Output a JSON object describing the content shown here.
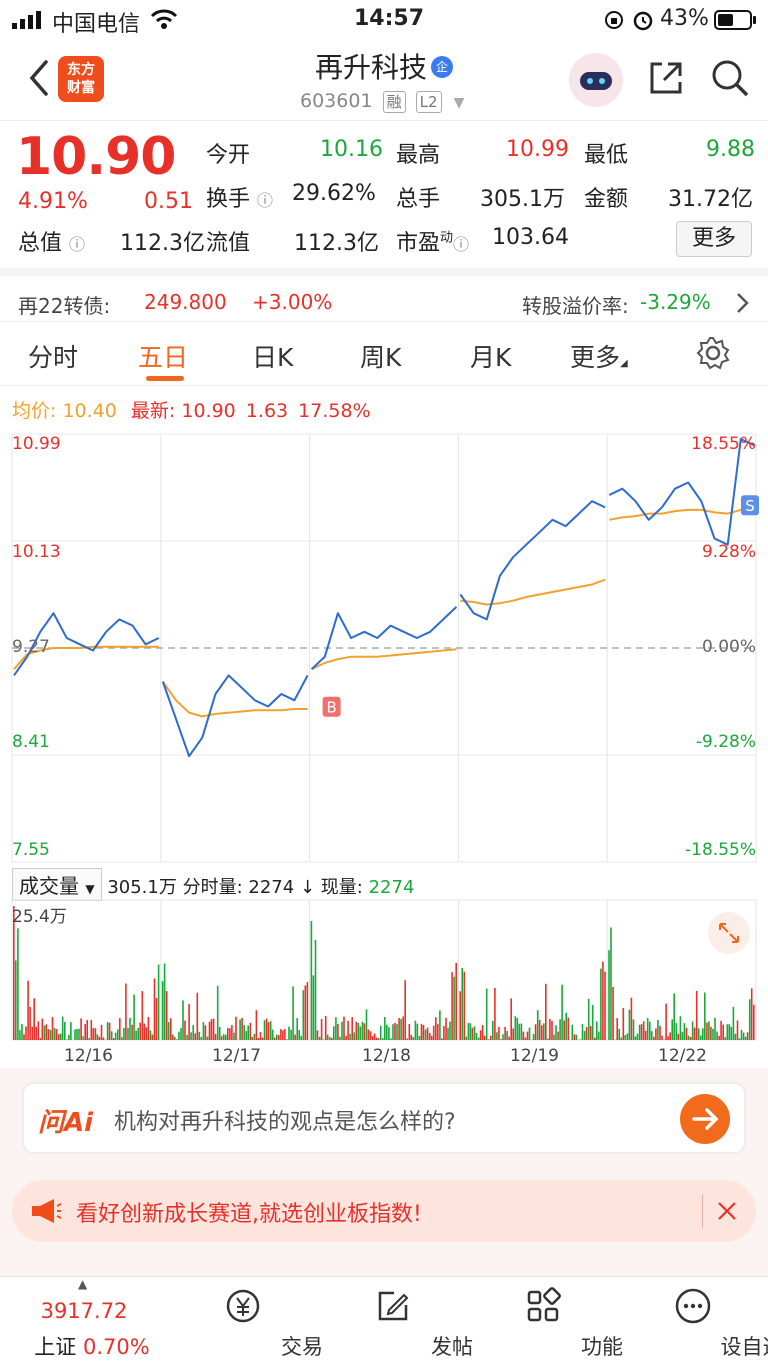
{
  "status": {
    "carrier": "中国电信",
    "time": "14:57",
    "battery": "43%"
  },
  "nav": {
    "logo_line1": "东方",
    "logo_line2": "财富",
    "stock_name": "再升科技",
    "qi": "企",
    "code": "603601",
    "tag_rong": "融",
    "tag_l2": "L2"
  },
  "quote": {
    "price": "10.90",
    "change_pct": "4.91%",
    "change": "0.51",
    "open_label": "今开",
    "open": "10.16",
    "high_label": "最高",
    "high": "10.99",
    "low_label": "最低",
    "low": "9.88",
    "turnover_label": "换手",
    "turnover": "29.62%",
    "volume_label": "总手",
    "volume": "305.1万",
    "amount_label": "金额",
    "amount": "31.72亿",
    "mcap_label": "总值",
    "mcap": "112.3亿",
    "float_label": "流值",
    "float": "112.3亿",
    "pe_label": "市盈",
    "pe_sup": "动",
    "pe": "103.64",
    "more_button": "更多"
  },
  "bond": {
    "name": "再22转债:",
    "price": "249.800",
    "change": "+3.00%",
    "premium_label": "转股溢价率:",
    "premium": "-3.29%"
  },
  "tabs": [
    "分时",
    "五日",
    "日K",
    "周K",
    "月K",
    "更多"
  ],
  "active_tab": "五日",
  "legend": {
    "avg_label": "均价:",
    "avg_value": "10.40",
    "latest_label": "最新:",
    "latest_price": "10.90",
    "latest_change": "1.63",
    "latest_pct": "17.58%"
  },
  "chart_data": {
    "type": "line",
    "y_left_ticks": [
      "10.99",
      "10.13",
      "9.27",
      "8.41",
      "7.55"
    ],
    "y_right_ticks": [
      "18.55%",
      "9.28%",
      "0.00%",
      "-9.28%",
      "-18.55%"
    ],
    "ylim": [
      7.55,
      10.99
    ],
    "base_price": 9.27,
    "days": [
      "12/16",
      "12/17",
      "12/18",
      "12/19",
      "12/22"
    ],
    "price_series": [
      [
        9.05,
        9.2,
        9.4,
        9.55,
        9.35,
        9.3,
        9.25,
        9.4,
        9.5,
        9.45,
        9.3,
        9.35
      ],
      [
        9.0,
        8.7,
        8.4,
        8.55,
        8.9,
        9.05,
        8.95,
        8.85,
        8.8,
        8.9,
        8.85,
        9.05
      ],
      [
        9.1,
        9.2,
        9.55,
        9.35,
        9.4,
        9.35,
        9.45,
        9.4,
        9.35,
        9.4,
        9.5,
        9.6
      ],
      [
        9.7,
        9.55,
        9.5,
        9.85,
        10.0,
        10.1,
        10.2,
        10.3,
        10.25,
        10.35,
        10.45,
        10.4
      ],
      [
        10.5,
        10.55,
        10.45,
        10.3,
        10.4,
        10.55,
        10.6,
        10.45,
        10.15,
        10.1,
        10.95,
        10.9
      ]
    ],
    "avg_series": [
      [
        9.1,
        9.22,
        9.25,
        9.27,
        9.27,
        9.27,
        9.28,
        9.28,
        9.28,
        9.28,
        9.28,
        9.28
      ],
      [
        9.0,
        8.85,
        8.75,
        8.72,
        8.74,
        8.75,
        8.76,
        8.77,
        8.77,
        8.77,
        8.78,
        8.78
      ],
      [
        9.1,
        9.15,
        9.18,
        9.2,
        9.2,
        9.2,
        9.21,
        9.22,
        9.23,
        9.24,
        9.25,
        9.26
      ],
      [
        9.65,
        9.64,
        9.62,
        9.63,
        9.65,
        9.68,
        9.7,
        9.72,
        9.74,
        9.76,
        9.78,
        9.82
      ],
      [
        10.3,
        10.32,
        10.33,
        10.35,
        10.35,
        10.37,
        10.38,
        10.38,
        10.36,
        10.35,
        10.38,
        10.4
      ]
    ],
    "markers": [
      {
        "label": "B",
        "day": 2
      },
      {
        "label": "S",
        "day": 4
      }
    ]
  },
  "volume": {
    "dropdown": "成交量",
    "total": "305.1万",
    "fen_label": "分时量:",
    "fen_value": "2274",
    "arrow": "↓",
    "now_label": "现量:",
    "now_value": "2274",
    "max_label": "25.4万"
  },
  "ai": {
    "logo": "问Ai",
    "prompt": "机构对再升科技的观点是怎么样的?"
  },
  "promo": {
    "text": "看好创新成长赛道,就选创业板指数!"
  },
  "bottom": {
    "index_value": "3917.72",
    "index_name": "上证",
    "index_pct": "0.70%",
    "trade": "交易",
    "post": "发帖",
    "features": "功能",
    "watchlist": "设自选"
  },
  "colors": {
    "up": "#e8302a",
    "down": "#1aa83a",
    "price_line": "#2c6bd0",
    "avg_line": "#f2a12d",
    "accent": "#f0661e"
  }
}
